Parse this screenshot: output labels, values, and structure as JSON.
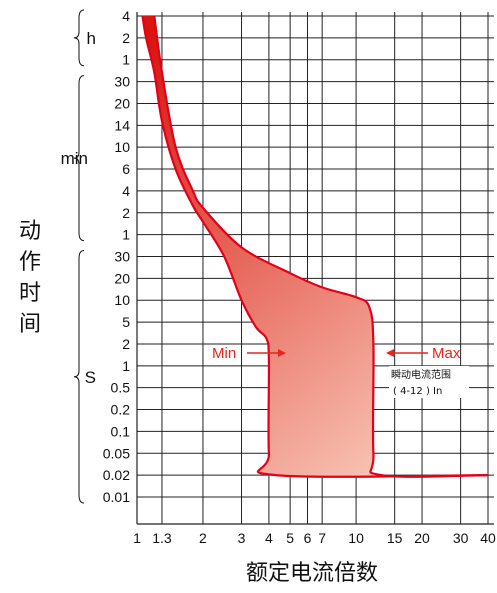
{
  "chart_data": {
    "type": "area",
    "title": "",
    "xlabel": "额定电流倍数",
    "ylabel": "动作时间",
    "x_scale": "log",
    "y_scale": "log",
    "grid": true,
    "xlim": [
      1,
      40
    ],
    "x_ticks": [
      {
        "v": 1,
        "label": "1"
      },
      {
        "v": 1.3,
        "label": "1.3"
      },
      {
        "v": 2,
        "label": "2"
      },
      {
        "v": 3,
        "label": "3"
      },
      {
        "v": 4,
        "label": "4"
      },
      {
        "v": 5,
        "label": "5"
      },
      {
        "v": 6,
        "label": "6"
      },
      {
        "v": 7,
        "label": "7"
      },
      {
        "v": 10,
        "label": "10"
      },
      {
        "v": 15,
        "label": "15"
      },
      {
        "v": 20,
        "label": "20"
      },
      {
        "v": 30,
        "label": "30"
      },
      {
        "v": 40,
        "label": "40"
      }
    ],
    "y_groups": [
      {
        "unit": "h",
        "ticks": [
          {
            "s": 14400,
            "label": "4"
          },
          {
            "s": 7200,
            "label": "2"
          },
          {
            "s": 3600,
            "label": "1"
          }
        ]
      },
      {
        "unit": "min",
        "ticks": [
          {
            "s": 1800,
            "label": "30"
          },
          {
            "s": 1200,
            "label": "20"
          },
          {
            "s": 840,
            "label": "14"
          },
          {
            "s": 600,
            "label": "10"
          },
          {
            "s": 360,
            "label": "6"
          },
          {
            "s": 240,
            "label": "4"
          },
          {
            "s": 120,
            "label": "2"
          },
          {
            "s": 60,
            "label": "1"
          }
        ]
      },
      {
        "unit": "S",
        "ticks": [
          {
            "s": 30,
            "label": "30"
          },
          {
            "s": 20,
            "label": "20"
          },
          {
            "s": 10,
            "label": "10"
          },
          {
            "s": 5,
            "label": "5"
          },
          {
            "s": 2,
            "label": "2"
          },
          {
            "s": 1,
            "label": "1"
          },
          {
            "s": 0.5,
            "label": "0.5"
          },
          {
            "s": 0.2,
            "label": "0.2"
          },
          {
            "s": 0.1,
            "label": "0.1"
          },
          {
            "s": 0.05,
            "label": "0.05"
          },
          {
            "s": 0.02,
            "label": "0.02"
          },
          {
            "s": 0.01,
            "label": "0.01"
          }
        ]
      }
    ],
    "series": [
      {
        "name": "Min",
        "points": [
          [
            1.06,
            14400
          ],
          [
            1.1,
            7200
          ],
          [
            1.2,
            2400
          ],
          [
            1.3,
            900
          ],
          [
            1.5,
            360
          ],
          [
            1.8,
            150
          ],
          [
            2,
            90
          ],
          [
            2.5,
            30
          ],
          [
            3,
            10
          ],
          [
            3.5,
            4
          ],
          [
            3.9,
            2.5
          ],
          [
            4.0,
            1.2
          ],
          [
            4.0,
            0.05
          ],
          [
            4.3,
            0.02
          ],
          [
            40,
            0.02
          ]
        ]
      },
      {
        "name": "Max",
        "points": [
          [
            1.2,
            14400
          ],
          [
            1.3,
            2400
          ],
          [
            1.5,
            600
          ],
          [
            1.8,
            240
          ],
          [
            2,
            140
          ],
          [
            3,
            40
          ],
          [
            5,
            22
          ],
          [
            7,
            15
          ],
          [
            10,
            11
          ],
          [
            11.5,
            8
          ],
          [
            12,
            2
          ],
          [
            12,
            0.05
          ],
          [
            13,
            0.02
          ],
          [
            40,
            0.02
          ]
        ]
      }
    ],
    "annotations": {
      "min_label": "Min",
      "max_label": "Max",
      "instant_range_line1": "瞬动电流范围",
      "instant_range_line2": "( 4-12 ) In"
    },
    "colors": {
      "band_dark": "#d8160f",
      "band_light": "#fbd5c4",
      "curve": "#e3001b",
      "grid": "#222222"
    }
  }
}
